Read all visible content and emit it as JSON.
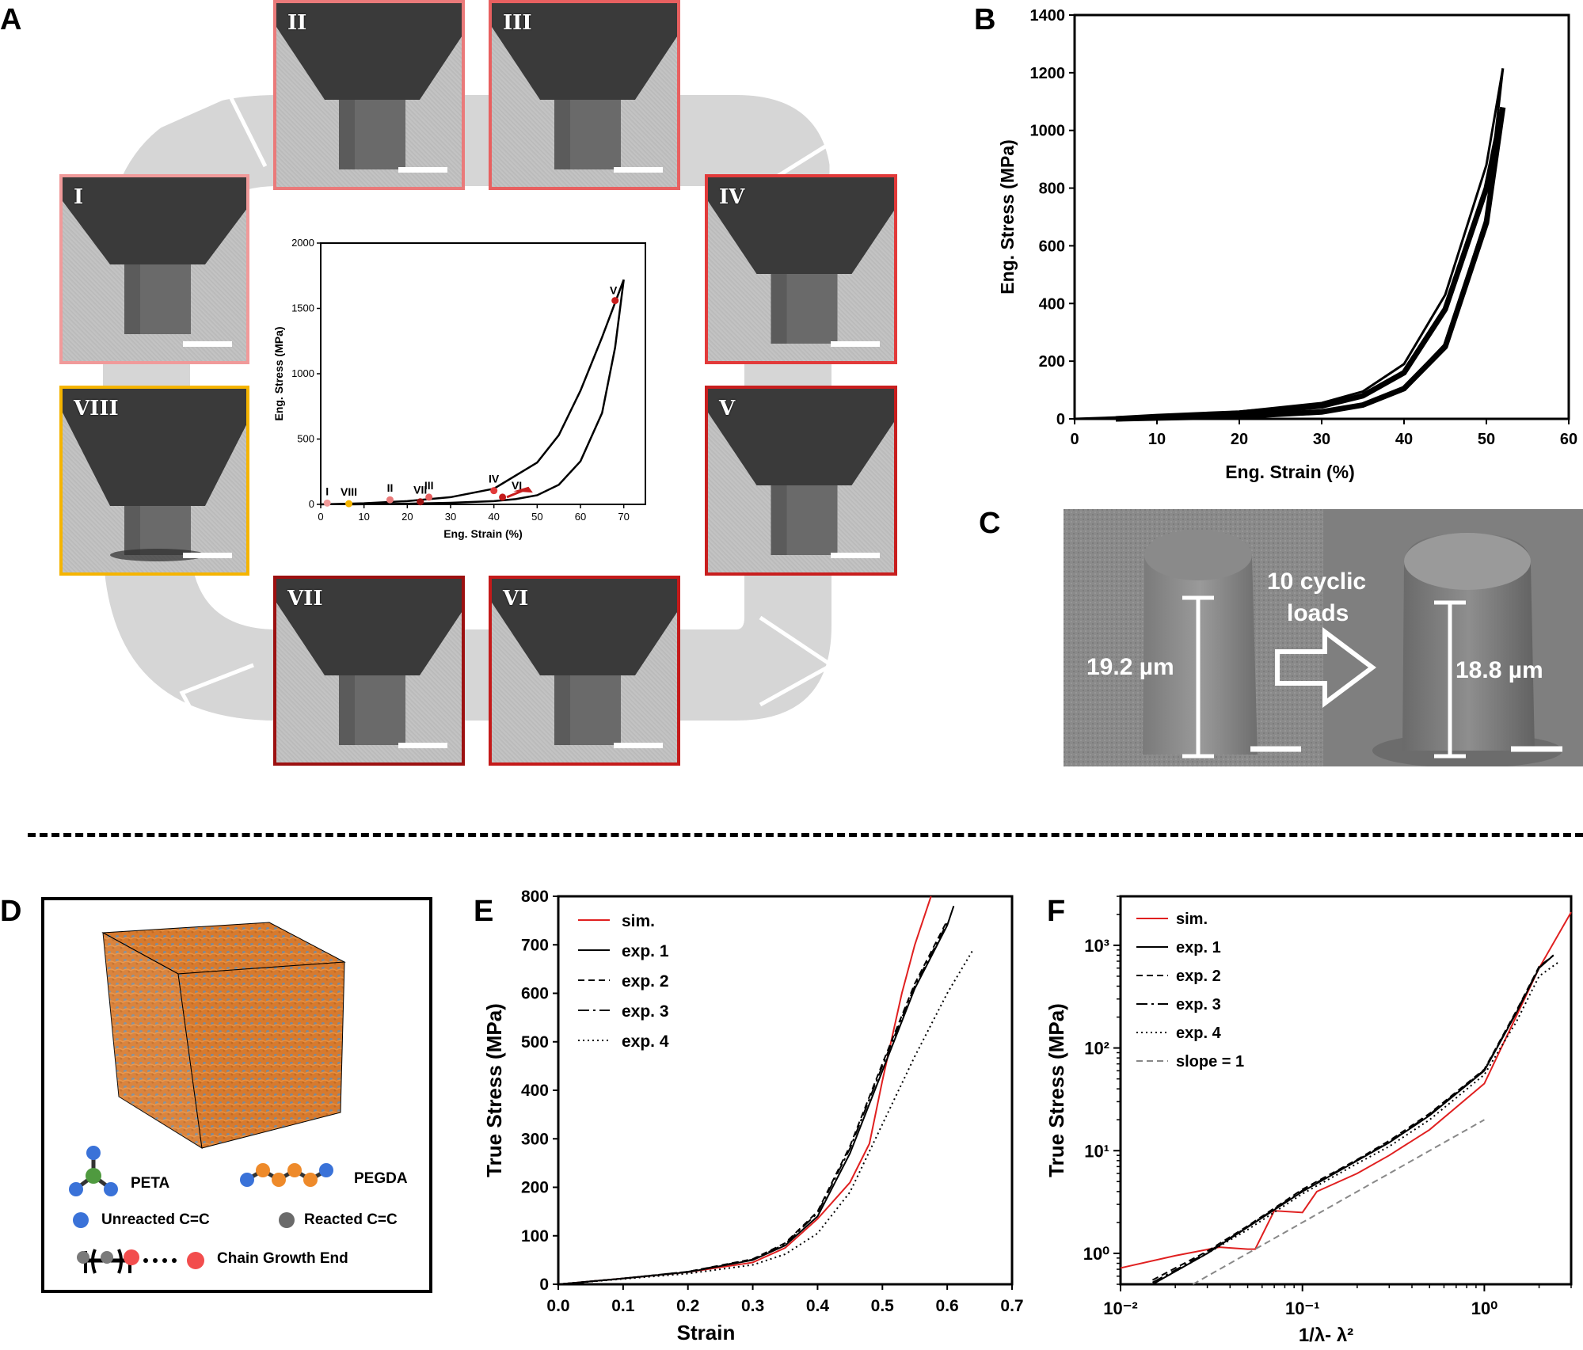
{
  "panel_labels": {
    "A": "A",
    "B": "B",
    "C": "C",
    "D": "D",
    "E": "E",
    "F": "F"
  },
  "colors": {
    "stage_I": "#f09a9a",
    "stage_II": "#ea7a7a",
    "stage_III": "#e86060",
    "stage_IV": "#e23a3a",
    "stage_V": "#c81e1e",
    "stage_VI": "#c41a1a",
    "stage_VII": "#9c1010",
    "stage_VIII": "#f5b400",
    "sim": "#e02020",
    "arrow_bg": "#d6d6d6"
  },
  "panelA": {
    "sem_frames": [
      {
        "id": "I",
        "label": "I"
      },
      {
        "id": "II",
        "label": "II"
      },
      {
        "id": "III",
        "label": "III"
      },
      {
        "id": "IV",
        "label": "IV"
      },
      {
        "id": "V",
        "label": "V"
      },
      {
        "id": "VI",
        "label": "VI"
      },
      {
        "id": "VII",
        "label": "VII"
      },
      {
        "id": "VIII",
        "label": "VIII"
      }
    ],
    "inset": {
      "xlabel": "Eng. Strain (%)",
      "ylabel": "Eng. Stress (MPa)",
      "xticks": [
        "0",
        "10",
        "20",
        "30",
        "40",
        "50",
        "60",
        "70"
      ],
      "yticks": [
        "0",
        "500",
        "1000",
        "1500",
        "2000"
      ]
    }
  },
  "chart_data": [
    {
      "panel": "A-inset",
      "type": "line",
      "xlabel": "Eng. Strain (%)",
      "ylabel": "Eng. Stress (MPa)",
      "xlim": [
        0,
        75
      ],
      "ylim": [
        0,
        2000
      ],
      "series": [
        {
          "name": "loading",
          "x": [
            0,
            10,
            20,
            30,
            40,
            50,
            55,
            60,
            65,
            70
          ],
          "y": [
            0,
            8,
            25,
            55,
            120,
            320,
            530,
            870,
            1280,
            1720
          ]
        },
        {
          "name": "unloading",
          "x": [
            70,
            68,
            65,
            60,
            55,
            50,
            45,
            40,
            30,
            20,
            6.5
          ],
          "y": [
            1720,
            1200,
            700,
            330,
            150,
            70,
            40,
            25,
            12,
            5,
            0
          ]
        }
      ],
      "points": [
        {
          "label": "I",
          "x": 1.5,
          "y": 10
        },
        {
          "label": "VIII",
          "x": 6.5,
          "y": 5
        },
        {
          "label": "II",
          "x": 16,
          "y": 35
        },
        {
          "label": "VII",
          "x": 23,
          "y": 20
        },
        {
          "label": "III",
          "x": 25,
          "y": 55
        },
        {
          "label": "IV",
          "x": 40,
          "y": 105
        },
        {
          "label": "VI",
          "x": 42,
          "y": 55
        },
        {
          "label": "V",
          "x": 68,
          "y": 1560
        }
      ]
    },
    {
      "panel": "B",
      "type": "line",
      "xlabel": "Eng. Strain (%)",
      "ylabel": "Eng. Stress (MPa)",
      "xlim": [
        0,
        60
      ],
      "ylim": [
        0,
        1400
      ],
      "xticks": [
        "0",
        "10",
        "20",
        "30",
        "40",
        "50",
        "60"
      ],
      "yticks": [
        "0",
        "200",
        "400",
        "600",
        "800",
        "1000",
        "1200",
        "1400"
      ],
      "series": [
        {
          "name": "first loading",
          "x": [
            0,
            10,
            20,
            30,
            35,
            40,
            45,
            50,
            52
          ],
          "y": [
            0,
            10,
            25,
            55,
            95,
            190,
            430,
            880,
            1215
          ]
        },
        {
          "name": "first unloading",
          "x": [
            52,
            50,
            45,
            40,
            35,
            30,
            20,
            10,
            5
          ],
          "y": [
            1215,
            700,
            260,
            110,
            50,
            25,
            10,
            3,
            0
          ]
        },
        {
          "name": "subsequent loading",
          "x": [
            5,
            10,
            20,
            30,
            35,
            40,
            45,
            50,
            52
          ],
          "y": [
            0,
            8,
            20,
            45,
            80,
            160,
            380,
            800,
            1080
          ]
        },
        {
          "name": "subsequent unloading",
          "x": [
            52,
            50,
            45,
            40,
            35,
            30,
            20,
            10,
            5
          ],
          "y": [
            1080,
            680,
            250,
            105,
            48,
            24,
            9,
            3,
            0
          ]
        }
      ]
    },
    {
      "panel": "E",
      "type": "line",
      "xlabel": "Strain",
      "ylabel": "True Stress (MPa)",
      "xlim": [
        0,
        0.7
      ],
      "ylim": [
        0,
        800
      ],
      "xticks": [
        "0.0",
        "0.1",
        "0.2",
        "0.3",
        "0.4",
        "0.5",
        "0.6",
        "0.7"
      ],
      "yticks": [
        "0",
        "100",
        "200",
        "300",
        "400",
        "500",
        "600",
        "700",
        "800"
      ],
      "series": [
        {
          "name": "sim.",
          "x": [
            0,
            0.1,
            0.2,
            0.3,
            0.35,
            0.4,
            0.45,
            0.48,
            0.5,
            0.53,
            0.55,
            0.575
          ],
          "y": [
            0,
            12,
            25,
            45,
            75,
            135,
            210,
            290,
            420,
            600,
            700,
            800
          ]
        },
        {
          "name": "exp. 1",
          "x": [
            0,
            0.1,
            0.2,
            0.3,
            0.35,
            0.4,
            0.45,
            0.5,
            0.55,
            0.6,
            0.61
          ],
          "y": [
            0,
            12,
            25,
            50,
            80,
            140,
            270,
            440,
            610,
            740,
            780
          ]
        },
        {
          "name": "exp. 2",
          "x": [
            0,
            0.1,
            0.2,
            0.3,
            0.35,
            0.4,
            0.45,
            0.5,
            0.55,
            0.6
          ],
          "y": [
            0,
            12,
            26,
            52,
            85,
            150,
            285,
            455,
            620,
            750
          ]
        },
        {
          "name": "exp. 3",
          "x": [
            0,
            0.1,
            0.2,
            0.3,
            0.35,
            0.4,
            0.45,
            0.5,
            0.55,
            0.6
          ],
          "y": [
            0,
            12,
            26,
            51,
            83,
            147,
            280,
            450,
            615,
            745
          ]
        },
        {
          "name": "exp. 4",
          "x": [
            0,
            0.1,
            0.2,
            0.3,
            0.35,
            0.4,
            0.45,
            0.5,
            0.55,
            0.6,
            0.64
          ],
          "y": [
            0,
            11,
            22,
            40,
            62,
            105,
            190,
            330,
            470,
            600,
            690
          ]
        }
      ]
    },
    {
      "panel": "F",
      "type": "line",
      "xscale": "log",
      "yscale": "log",
      "xlabel": "1/λ- λ²",
      "ylabel": "True Stress (MPa)",
      "xlim": [
        0.01,
        3
      ],
      "ylim": [
        0.5,
        3000
      ],
      "xticks": [
        "10⁻²",
        "10⁻¹",
        "10⁰"
      ],
      "yticks": [
        "10⁰",
        "10¹",
        "10²",
        "10³"
      ],
      "series": [
        {
          "name": "sim.",
          "x": [
            0.01,
            0.02,
            0.035,
            0.05,
            0.055,
            0.07,
            0.1,
            0.12,
            0.2,
            0.3,
            0.5,
            1,
            2,
            3
          ],
          "y": [
            0.72,
            0.95,
            1.15,
            1.1,
            1.1,
            2.6,
            2.5,
            4,
            6,
            9,
            16,
            45,
            600,
            2100
          ]
        },
        {
          "name": "exp. 1",
          "x": [
            0.015,
            0.03,
            0.05,
            0.1,
            0.2,
            0.3,
            0.5,
            1,
            1.5,
            2,
            2.4
          ],
          "y": [
            0.5,
            1,
            1.8,
            4,
            8,
            12,
            22,
            60,
            220,
            600,
            800
          ]
        },
        {
          "name": "exp. 2",
          "x": [
            0.015,
            0.03,
            0.05,
            0.1,
            0.2,
            0.3,
            0.5,
            1,
            1.5,
            2,
            2.4
          ],
          "y": [
            0.55,
            1.05,
            1.85,
            4.2,
            8.2,
            12.5,
            23,
            62,
            230,
            620,
            800
          ]
        },
        {
          "name": "exp. 3",
          "x": [
            0.015,
            0.03,
            0.05,
            0.1,
            0.2,
            0.3,
            0.5,
            1,
            1.5,
            2,
            2.4
          ],
          "y": [
            0.52,
            1.02,
            1.82,
            4.1,
            8.1,
            12.2,
            22.5,
            61,
            225,
            610,
            800
          ]
        },
        {
          "name": "exp. 4",
          "x": [
            0.015,
            0.03,
            0.05,
            0.1,
            0.2,
            0.3,
            0.5,
            1,
            1.5,
            2,
            2.6
          ],
          "y": [
            0.5,
            1,
            1.7,
            3.8,
            7.5,
            11,
            20,
            55,
            180,
            500,
            700
          ]
        },
        {
          "name": "slope = 1",
          "x": [
            0.025,
            1
          ],
          "y": [
            0.5,
            20
          ]
        }
      ]
    }
  ],
  "panelB": {
    "xlabel": "Eng. Strain (%)",
    "ylabel": "Eng. Stress (MPa)"
  },
  "panelC": {
    "left_height": "19.2 µm",
    "right_height": "18.8 µm",
    "arrow_text_line1": "10 cyclic",
    "arrow_text_line2": "loads"
  },
  "panelD": {
    "legend": {
      "peta": "PETA",
      "pegda": "PEGDA",
      "unreacted": "Unreacted C=C",
      "reacted": "Reacted C=C",
      "chain_end": "Chain Growth End"
    }
  },
  "panelE": {
    "xlabel": "Strain",
    "ylabel": "True Stress (MPa)",
    "legend": [
      "sim.",
      "exp. 1",
      "exp. 2",
      "exp. 3",
      "exp. 4"
    ]
  },
  "panelF": {
    "xlabel": "1/λ- λ²",
    "ylabel": "True Stress (MPa)",
    "legend": [
      "sim.",
      "exp. 1",
      "exp. 2",
      "exp. 3",
      "exp. 4",
      "slope = 1"
    ]
  }
}
